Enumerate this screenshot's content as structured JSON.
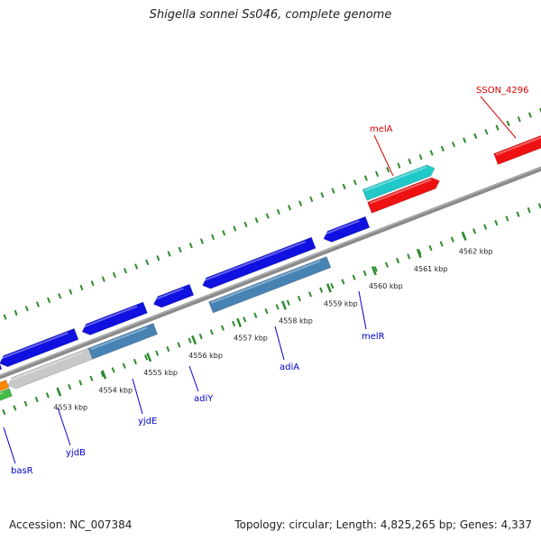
{
  "title": "Shigella sonnei Ss046, complete genome",
  "footer": {
    "accession": "Accession: NC_007384",
    "summary": "Topology: circular; Length: 4,825,265 bp; Genes: 4,337"
  },
  "colors": {
    "backbone": "#8a8a8a",
    "ticks": "#2e8b2e",
    "cds_forward": "#1010e0",
    "cds_reverse": "#1010e0",
    "cds_steelblue": "#4682b4",
    "cds_gray": "#c8c8c8",
    "rna_cyan": "#20c8c8",
    "rna_red": "#ee1111",
    "orange": "#ff8800",
    "green": "#44bb44",
    "label_blue": "#0000cc",
    "label_red": "#dd0000"
  },
  "scale": {
    "ticks_kbp": [
      {
        "value": 4553,
        "label": "4553 kbp"
      },
      {
        "value": 4554,
        "label": "4554 kbp"
      },
      {
        "value": 4555,
        "label": "4555 kbp"
      },
      {
        "value": 4556,
        "label": "4556 kbp"
      },
      {
        "value": 4557,
        "label": "4557 kbp"
      },
      {
        "value": 4558,
        "label": "4558 kbp"
      },
      {
        "value": 4559,
        "label": "4559 kbp"
      },
      {
        "value": 4560,
        "label": "4560 kbp"
      },
      {
        "value": 4561,
        "label": "4561 kbp"
      },
      {
        "value": 4562,
        "label": "4562 kbp"
      }
    ]
  },
  "gene_labels": [
    {
      "name": "basR",
      "color": "label_blue"
    },
    {
      "name": "yjdB",
      "color": "label_blue"
    },
    {
      "name": "yjdE",
      "color": "label_blue"
    },
    {
      "name": "adiY",
      "color": "label_blue"
    },
    {
      "name": "adiA",
      "color": "label_blue"
    },
    {
      "name": "melR",
      "color": "label_blue"
    },
    {
      "name": "melA",
      "color": "label_red"
    },
    {
      "name": "SSON_4296",
      "color": "label_red"
    }
  ]
}
